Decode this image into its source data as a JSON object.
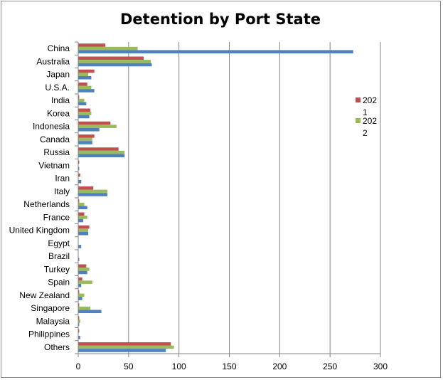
{
  "chart_data": {
    "type": "bar",
    "orientation": "horizontal",
    "title": "Detention by Port State",
    "xlabel": "",
    "ylabel": "",
    "xlim": [
      0,
      300
    ],
    "xticks": [
      0,
      50,
      100,
      150,
      200,
      250,
      300
    ],
    "grid": "vertical",
    "legend_position": "right",
    "categories": [
      "China",
      "Australia",
      "Japan",
      "U.S.A.",
      "India",
      "Korea",
      "Indonesia",
      "Canada",
      "Russia",
      "Vietnam",
      "Iran",
      "Italy",
      "Netherlands",
      "France",
      "United Kingdom",
      "Egypt",
      "Brazil",
      "Turkey",
      "Spain",
      "New Zealand",
      "Singapore",
      "Malaysia",
      "Philippines",
      "Others"
    ],
    "series": [
      {
        "name": "202",
        "name_line2": "1",
        "color": "#c0504d",
        "values": [
          27,
          65,
          16,
          9,
          1,
          12,
          32,
          16,
          40,
          1,
          2,
          15,
          1,
          6,
          11,
          0,
          0,
          8,
          4,
          1,
          1,
          1,
          1,
          92
        ]
      },
      {
        "name": "202",
        "name_line2": "2",
        "color": "#9bbb59",
        "values": [
          59,
          72,
          10,
          13,
          6,
          13,
          38,
          14,
          46,
          0,
          0,
          29,
          6,
          9,
          10,
          0,
          0,
          11,
          14,
          6,
          12,
          2,
          0,
          95
        ]
      },
      {
        "name": "",
        "color": "#4f81bd",
        "values": [
          273,
          73,
          13,
          16,
          8,
          11,
          21,
          14,
          46,
          1,
          3,
          29,
          9,
          5,
          10,
          3,
          1,
          9,
          3,
          4,
          23,
          1,
          2,
          87
        ]
      }
    ]
  }
}
